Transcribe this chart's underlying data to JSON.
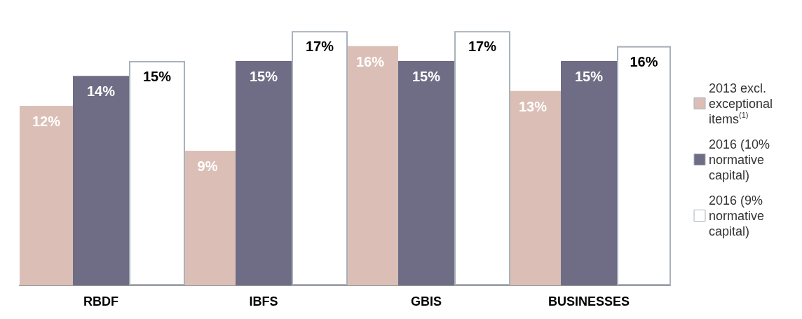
{
  "chart_data": {
    "type": "bar",
    "categories": [
      "RBDF",
      "IBFS",
      "GBIS",
      "BUSINESSES"
    ],
    "series": [
      {
        "name": "2013 excl. exceptional items$^{(1)}$",
        "color": "#dbbfb6",
        "values": [
          12,
          9,
          16,
          13
        ],
        "value_labels": [
          "12%",
          "9%",
          "16%",
          "13%"
        ]
      },
      {
        "name": "2016 (10% normative capital)",
        "color": "#6e6d85",
        "values": [
          14,
          15,
          15,
          15
        ],
        "value_labels": [
          "14%",
          "15%",
          "15%",
          "15%"
        ]
      },
      {
        "name": "2016 (9% normative capital)",
        "color": "#ffffff",
        "values": [
          15,
          17,
          17,
          16
        ],
        "value_labels": [
          "15%",
          "17%",
          "17%",
          "16%"
        ]
      }
    ],
    "grid": false,
    "legend": "right"
  }
}
